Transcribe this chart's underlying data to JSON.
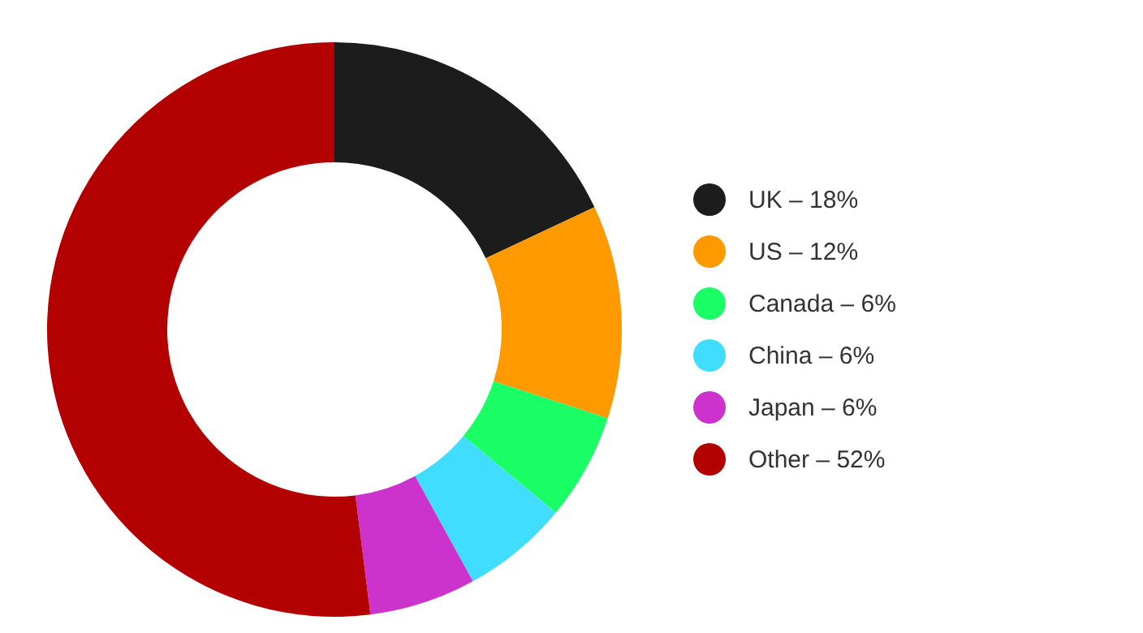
{
  "chart_data": {
    "type": "donut",
    "categories": [
      "UK – 18%",
      "US – 12%",
      "Canada – 6%",
      "China – 6%",
      "Japan – 6%",
      "Other – 52%"
    ],
    "values": [
      18,
      12,
      6,
      6,
      6,
      52
    ],
    "colors": [
      "#1c1c1c",
      "#ff9900",
      "#1aff66",
      "#40ddff",
      "#cc33cc",
      "#b30000"
    ],
    "legend": "right"
  }
}
